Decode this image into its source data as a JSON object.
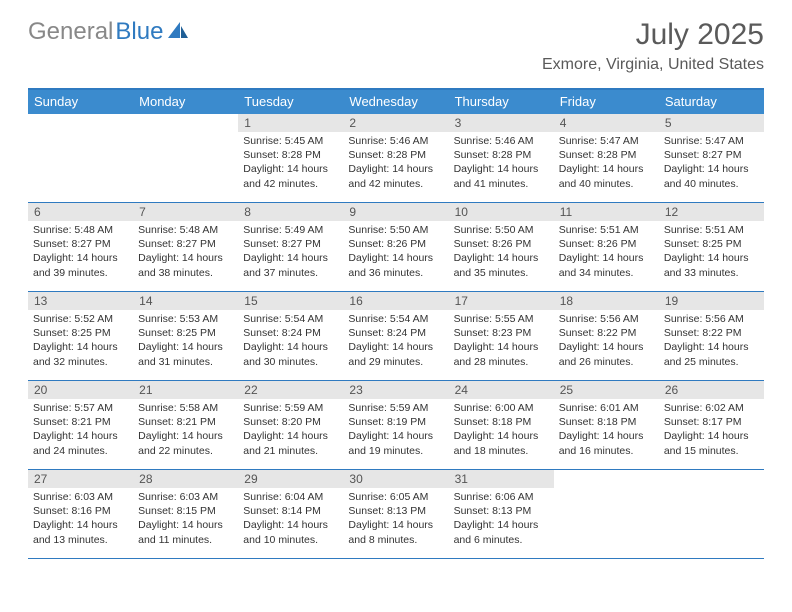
{
  "brand": {
    "text_gray": "General",
    "text_blue": "Blue"
  },
  "title": "July 2025",
  "location": "Exmore, Virginia, United States",
  "colors": {
    "accent": "#3b8bce",
    "border": "#2f7ac0",
    "daynum_bg": "#e6e6e6",
    "text_muted": "#5a5a5a"
  },
  "day_headers": [
    "Sunday",
    "Monday",
    "Tuesday",
    "Wednesday",
    "Thursday",
    "Friday",
    "Saturday"
  ],
  "labels": {
    "sunrise": "Sunrise:",
    "sunset": "Sunset:",
    "daylight": "Daylight:"
  },
  "weeks": [
    [
      {
        "empty": true
      },
      {
        "empty": true
      },
      {
        "day": "1",
        "sunrise": "5:45 AM",
        "sunset": "8:28 PM",
        "daylight": "14 hours and 42 minutes."
      },
      {
        "day": "2",
        "sunrise": "5:46 AM",
        "sunset": "8:28 PM",
        "daylight": "14 hours and 42 minutes."
      },
      {
        "day": "3",
        "sunrise": "5:46 AM",
        "sunset": "8:28 PM",
        "daylight": "14 hours and 41 minutes."
      },
      {
        "day": "4",
        "sunrise": "5:47 AM",
        "sunset": "8:28 PM",
        "daylight": "14 hours and 40 minutes."
      },
      {
        "day": "5",
        "sunrise": "5:47 AM",
        "sunset": "8:27 PM",
        "daylight": "14 hours and 40 minutes."
      }
    ],
    [
      {
        "day": "6",
        "sunrise": "5:48 AM",
        "sunset": "8:27 PM",
        "daylight": "14 hours and 39 minutes."
      },
      {
        "day": "7",
        "sunrise": "5:48 AM",
        "sunset": "8:27 PM",
        "daylight": "14 hours and 38 minutes."
      },
      {
        "day": "8",
        "sunrise": "5:49 AM",
        "sunset": "8:27 PM",
        "daylight": "14 hours and 37 minutes."
      },
      {
        "day": "9",
        "sunrise": "5:50 AM",
        "sunset": "8:26 PM",
        "daylight": "14 hours and 36 minutes."
      },
      {
        "day": "10",
        "sunrise": "5:50 AM",
        "sunset": "8:26 PM",
        "daylight": "14 hours and 35 minutes."
      },
      {
        "day": "11",
        "sunrise": "5:51 AM",
        "sunset": "8:26 PM",
        "daylight": "14 hours and 34 minutes."
      },
      {
        "day": "12",
        "sunrise": "5:51 AM",
        "sunset": "8:25 PM",
        "daylight": "14 hours and 33 minutes."
      }
    ],
    [
      {
        "day": "13",
        "sunrise": "5:52 AM",
        "sunset": "8:25 PM",
        "daylight": "14 hours and 32 minutes."
      },
      {
        "day": "14",
        "sunrise": "5:53 AM",
        "sunset": "8:25 PM",
        "daylight": "14 hours and 31 minutes."
      },
      {
        "day": "15",
        "sunrise": "5:54 AM",
        "sunset": "8:24 PM",
        "daylight": "14 hours and 30 minutes."
      },
      {
        "day": "16",
        "sunrise": "5:54 AM",
        "sunset": "8:24 PM",
        "daylight": "14 hours and 29 minutes."
      },
      {
        "day": "17",
        "sunrise": "5:55 AM",
        "sunset": "8:23 PM",
        "daylight": "14 hours and 28 minutes."
      },
      {
        "day": "18",
        "sunrise": "5:56 AM",
        "sunset": "8:22 PM",
        "daylight": "14 hours and 26 minutes."
      },
      {
        "day": "19",
        "sunrise": "5:56 AM",
        "sunset": "8:22 PM",
        "daylight": "14 hours and 25 minutes."
      }
    ],
    [
      {
        "day": "20",
        "sunrise": "5:57 AM",
        "sunset": "8:21 PM",
        "daylight": "14 hours and 24 minutes."
      },
      {
        "day": "21",
        "sunrise": "5:58 AM",
        "sunset": "8:21 PM",
        "daylight": "14 hours and 22 minutes."
      },
      {
        "day": "22",
        "sunrise": "5:59 AM",
        "sunset": "8:20 PM",
        "daylight": "14 hours and 21 minutes."
      },
      {
        "day": "23",
        "sunrise": "5:59 AM",
        "sunset": "8:19 PM",
        "daylight": "14 hours and 19 minutes."
      },
      {
        "day": "24",
        "sunrise": "6:00 AM",
        "sunset": "8:18 PM",
        "daylight": "14 hours and 18 minutes."
      },
      {
        "day": "25",
        "sunrise": "6:01 AM",
        "sunset": "8:18 PM",
        "daylight": "14 hours and 16 minutes."
      },
      {
        "day": "26",
        "sunrise": "6:02 AM",
        "sunset": "8:17 PM",
        "daylight": "14 hours and 15 minutes."
      }
    ],
    [
      {
        "day": "27",
        "sunrise": "6:03 AM",
        "sunset": "8:16 PM",
        "daylight": "14 hours and 13 minutes."
      },
      {
        "day": "28",
        "sunrise": "6:03 AM",
        "sunset": "8:15 PM",
        "daylight": "14 hours and 11 minutes."
      },
      {
        "day": "29",
        "sunrise": "6:04 AM",
        "sunset": "8:14 PM",
        "daylight": "14 hours and 10 minutes."
      },
      {
        "day": "30",
        "sunrise": "6:05 AM",
        "sunset": "8:13 PM",
        "daylight": "14 hours and 8 minutes."
      },
      {
        "day": "31",
        "sunrise": "6:06 AM",
        "sunset": "8:13 PM",
        "daylight": "14 hours and 6 minutes."
      },
      {
        "empty": true
      },
      {
        "empty": true
      }
    ]
  ]
}
